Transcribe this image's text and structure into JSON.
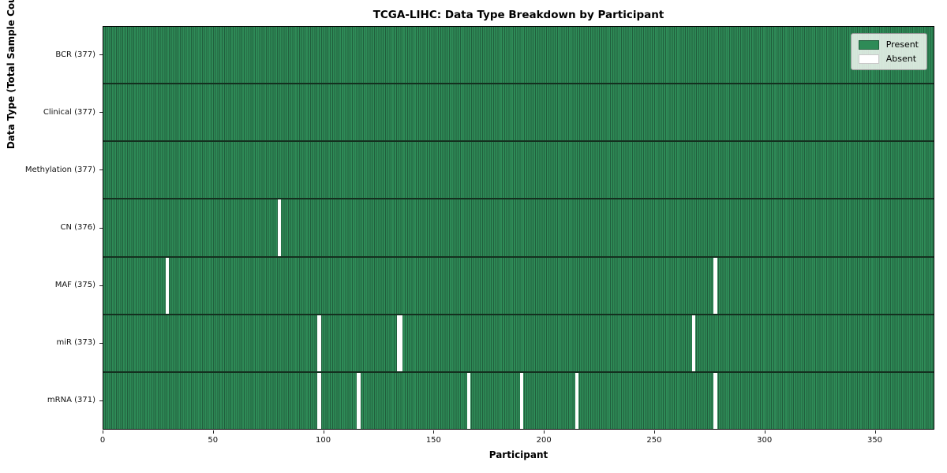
{
  "chart_data": {
    "type": "heatmap",
    "title": "TCGA-LIHC: Data Type Breakdown by Participant",
    "xlabel": "Participant",
    "ylabel": "Data Type (Total Sample Count)",
    "n_participants": 377,
    "xlim": [
      0,
      377
    ],
    "x_ticks": [
      0,
      50,
      100,
      150,
      200,
      250,
      300,
      350
    ],
    "grid": false,
    "legend": {
      "position": "upper right",
      "entries": [
        {
          "label": "Present",
          "color": "#2e8b57"
        },
        {
          "label": "Absent",
          "color": "#ffffff"
        }
      ]
    },
    "colors": {
      "present": "#2e8b57",
      "present_edge": "#215f3d",
      "row_border": "#14301f",
      "absent": "#ffffff"
    },
    "rows": [
      {
        "name": "BCR",
        "label": "BCR (377)",
        "total": 377,
        "absent_participants": []
      },
      {
        "name": "Clinical",
        "label": "Clinical (377)",
        "total": 377,
        "absent_participants": []
      },
      {
        "name": "Methylation",
        "label": "Methylation (377)",
        "total": 377,
        "absent_participants": []
      },
      {
        "name": "CN",
        "label": "CN (376)",
        "total": 376,
        "absent_participants": [
          80
        ]
      },
      {
        "name": "MAF",
        "label": "MAF (375)",
        "total": 375,
        "absent_participants": [
          29,
          278
        ]
      },
      {
        "name": "miR",
        "label": "miR (373)",
        "total": 373,
        "absent_participants": [
          98,
          134,
          135,
          268
        ]
      },
      {
        "name": "mRNA",
        "label": "mRNA (371)",
        "total": 371,
        "absent_participants": [
          98,
          116,
          166,
          190,
          215,
          278
        ]
      }
    ]
  }
}
